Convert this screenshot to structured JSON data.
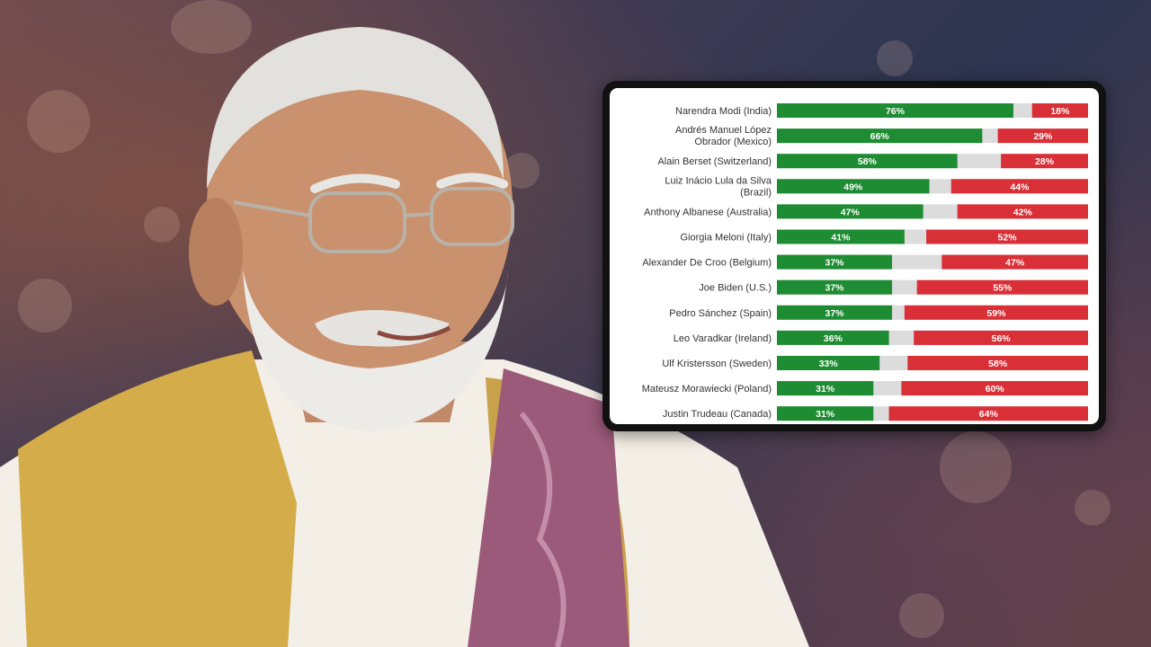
{
  "colors": {
    "approve": "#1e8c32",
    "neutral": "#dcdcdc",
    "disapprove": "#d92f37"
  },
  "chart_data": {
    "type": "bar",
    "orientation": "horizontal-stacked",
    "xlim": [
      0,
      100
    ],
    "grid": false,
    "legend": "none",
    "categories": [
      "Narendra Modi (India)",
      "Andrés Manuel López Obrador (Mexico)",
      "Alain Berset (Switzerland)",
      "Luiz Inácio Lula da Silva (Brazil)",
      "Anthony Albanese (Australia)",
      "Giorgia Meloni (Italy)",
      "Alexander De Croo (Belgium)",
      "Joe Biden (U.S.)",
      "Pedro Sánchez (Spain)",
      "Leo Varadkar (Ireland)",
      "Ulf Kristersson (Sweden)",
      "Mateusz Morawiecki (Poland)",
      "Justin Trudeau (Canada)"
    ],
    "series": [
      {
        "values": [
          76,
          66,
          58,
          49,
          47,
          41,
          37,
          37,
          37,
          36,
          33,
          31,
          31
        ]
      },
      {
        "values": [
          18,
          29,
          28,
          44,
          42,
          52,
          47,
          55,
          59,
          56,
          58,
          60,
          64
        ]
      }
    ],
    "data_labels": {
      "approve": [
        "76%",
        "66%",
        "58%",
        "49%",
        "47%",
        "41%",
        "37%",
        "37%",
        "37%",
        "36%",
        "33%",
        "31%",
        "31%"
      ],
      "disapprove": [
        "18%",
        "29%",
        "28%",
        "44%",
        "42%",
        "52%",
        "47%",
        "55%",
        "59%",
        "56%",
        "58%",
        "60%",
        "64%"
      ]
    }
  }
}
